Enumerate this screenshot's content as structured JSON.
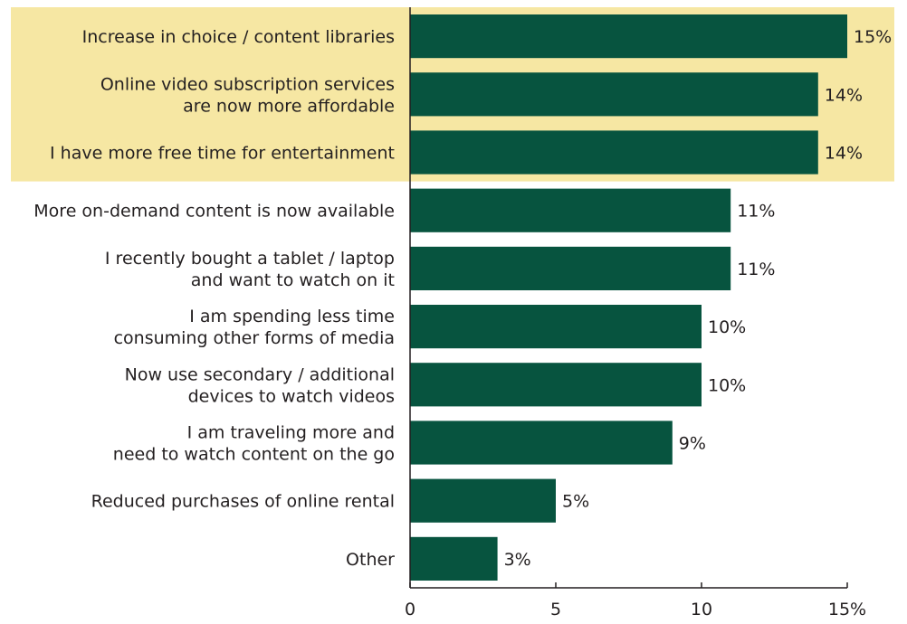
{
  "chart_data": {
    "type": "bar",
    "orientation": "horizontal",
    "categories": [
      [
        "Increase in choice / content libraries"
      ],
      [
        "Online video subscription services",
        "are now more affordable"
      ],
      [
        "I have more free time for entertainment"
      ],
      [
        "More on-demand content is now available"
      ],
      [
        "I recently bought a tablet / laptop",
        "and want to watch on it"
      ],
      [
        "I am spending less time",
        "consuming other forms of media"
      ],
      [
        "Now use secondary / additional",
        "devices to  watch videos"
      ],
      [
        "I am traveling more and",
        "need to watch content on the go"
      ],
      [
        "Reduced purchases of online rental"
      ],
      [
        "Other"
      ]
    ],
    "values": [
      15,
      14,
      14,
      11,
      11,
      10,
      10,
      9,
      5,
      3
    ],
    "data_labels": [
      "15%",
      "14%",
      "14%",
      "11%",
      "11%",
      "10%",
      "10%",
      "9%",
      "5%",
      "3%"
    ],
    "xlim": [
      0,
      15
    ],
    "x_ticks": [
      0,
      5,
      10,
      15
    ],
    "x_tick_labels": [
      "0",
      "5",
      "10",
      "15%"
    ],
    "highlighted_categories": [
      0,
      1,
      2
    ],
    "grid": false,
    "legend": "none",
    "colors": {
      "bar": "#07543f",
      "highlight_band": "#f6e7a3",
      "text": "#231f20",
      "axis": "#231f20"
    }
  }
}
